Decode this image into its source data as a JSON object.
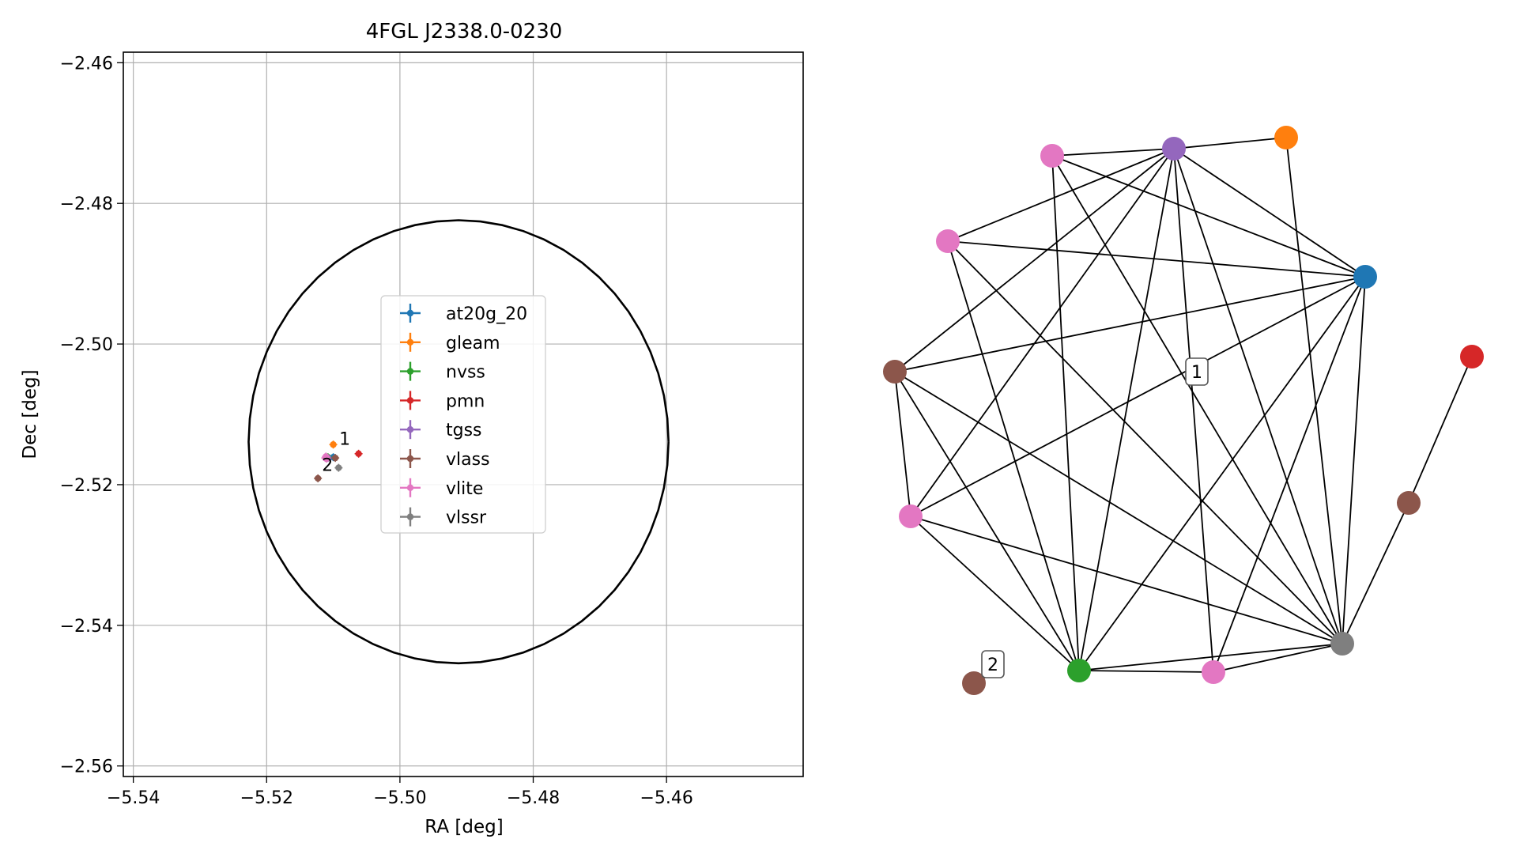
{
  "chart_data": [
    {
      "type": "scatter",
      "title": "4FGL J2338.0-0230",
      "xlabel": "RA [deg]",
      "ylabel": "Dec [deg]",
      "xlim": [
        -5.5415,
        -5.4395
      ],
      "ylim": [
        -2.5615,
        -2.4585
      ],
      "xticks": [
        -5.54,
        -5.52,
        -5.5,
        -5.48,
        -5.46
      ],
      "xtick_labels": [
        "−5.54",
        "−5.52",
        "−5.50",
        "−5.48",
        "−5.46"
      ],
      "yticks": [
        -2.46,
        -2.48,
        -2.5,
        -2.52,
        -2.54,
        -2.56
      ],
      "ytick_labels": [
        "−2.46",
        "−2.48",
        "−2.50",
        "−2.52",
        "−2.54",
        "−2.56"
      ],
      "grid": true,
      "legend_position": "center",
      "circle": {
        "center": [
          -5.4912,
          -2.5139
        ],
        "radius": 0.0315
      },
      "series": [
        {
          "name": "at20g_20",
          "color": "#1f77b4",
          "points": [
            [
              -5.51,
              -2.5161
            ]
          ]
        },
        {
          "name": "gleam",
          "color": "#ff7f0e",
          "points": [
            [
              -5.51,
              -2.5143
            ]
          ]
        },
        {
          "name": "nvss",
          "color": "#2ca02c",
          "points": [
            [
              -5.5108,
              -2.5161
            ]
          ]
        },
        {
          "name": "pmn",
          "color": "#d62728",
          "points": [
            [
              -5.5062,
              -2.5156
            ]
          ]
        },
        {
          "name": "tgss",
          "color": "#9467bd",
          "points": [
            [
              -5.5108,
              -2.5162
            ]
          ]
        },
        {
          "name": "vlass",
          "color": "#8c564b",
          "points": [
            [
              -5.5097,
              -2.5162
            ],
            [
              -5.5123,
              -2.5191
            ]
          ]
        },
        {
          "name": "vlite",
          "color": "#e377c2",
          "points": [
            [
              -5.5112,
              -2.5162
            ],
            [
              -5.5111,
              -2.516
            ],
            [
              -5.511,
              -2.5163
            ]
          ]
        },
        {
          "name": "vlssr",
          "color": "#7f7f7f",
          "points": [
            [
              -5.5092,
              -2.5176
            ]
          ]
        }
      ],
      "annotations": [
        {
          "text": "1",
          "x": -5.5091,
          "y": -2.5139
        },
        {
          "text": "2",
          "x": -5.5117,
          "y": -2.5176
        }
      ]
    },
    {
      "type": "network",
      "nodes": [
        {
          "id": 0,
          "catalog": "tgss",
          "color": "#9467bd"
        },
        {
          "id": 1,
          "catalog": "gleam",
          "color": "#ff7f0e"
        },
        {
          "id": 2,
          "catalog": "vlite",
          "color": "#e377c2"
        },
        {
          "id": 3,
          "catalog": "vlite",
          "color": "#e377c2"
        },
        {
          "id": 4,
          "catalog": "at20g_20",
          "color": "#1f77b4"
        },
        {
          "id": 5,
          "catalog": "vlass",
          "color": "#8c564b"
        },
        {
          "id": 6,
          "catalog": "pmn",
          "color": "#d62728"
        },
        {
          "id": 7,
          "catalog": "vlite",
          "color": "#e377c2"
        },
        {
          "id": 8,
          "catalog": "vlass",
          "color": "#8c564b"
        },
        {
          "id": 9,
          "catalog": "vlssr",
          "color": "#7f7f7f"
        },
        {
          "id": 10,
          "catalog": "nvss",
          "color": "#2ca02c"
        },
        {
          "id": 11,
          "catalog": "vlite",
          "color": "#e377c2"
        },
        {
          "id": 12,
          "catalog": "vlass",
          "color": "#8c564b"
        }
      ],
      "edges": [
        [
          0,
          1
        ],
        [
          0,
          2
        ],
        [
          0,
          3
        ],
        [
          0,
          4
        ],
        [
          0,
          5
        ],
        [
          0,
          7
        ],
        [
          0,
          9
        ],
        [
          0,
          10
        ],
        [
          0,
          11
        ],
        [
          1,
          9
        ],
        [
          2,
          4
        ],
        [
          2,
          9
        ],
        [
          2,
          10
        ],
        [
          3,
          4
        ],
        [
          3,
          9
        ],
        [
          3,
          10
        ],
        [
          4,
          5
        ],
        [
          4,
          7
        ],
        [
          4,
          9
        ],
        [
          4,
          10
        ],
        [
          4,
          11
        ],
        [
          5,
          9
        ],
        [
          5,
          10
        ],
        [
          5,
          7
        ],
        [
          7,
          9
        ],
        [
          7,
          10
        ],
        [
          9,
          10
        ],
        [
          9,
          11
        ],
        [
          9,
          8
        ],
        [
          10,
          11
        ],
        [
          8,
          6
        ]
      ],
      "group_labels": [
        "1",
        "2"
      ]
    }
  ]
}
